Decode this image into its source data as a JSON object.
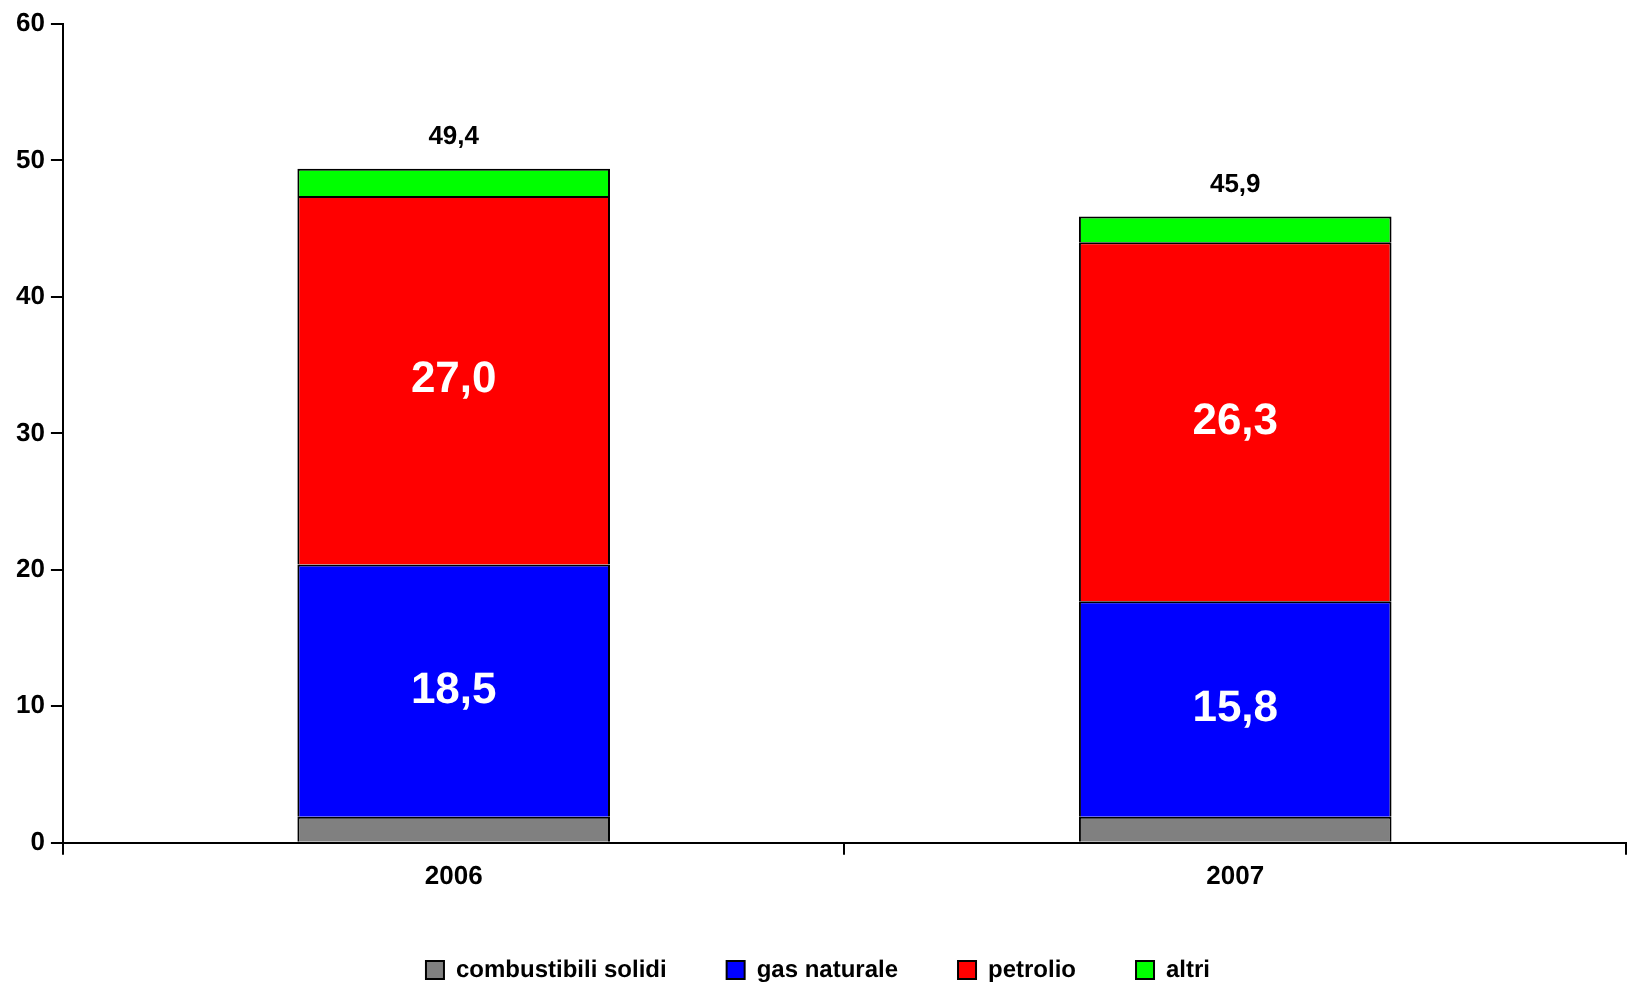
{
  "chart_data": {
    "type": "bar",
    "stacked": true,
    "categories": [
      "2006",
      "2007"
    ],
    "series": [
      {
        "name": "combustibili solidi",
        "color": "#808080",
        "values": [
          1.9,
          1.9
        ],
        "value_labels": [
          null,
          null
        ]
      },
      {
        "name": "gas naturale",
        "color": "#0000ff",
        "values": [
          18.5,
          15.8
        ],
        "value_labels": [
          "18,5",
          "15,8"
        ]
      },
      {
        "name": "petrolio",
        "color": "#ff0000",
        "values": [
          27.0,
          26.3
        ],
        "value_labels": [
          "27,0",
          "26,3"
        ]
      },
      {
        "name": "altri",
        "color": "#00ff00",
        "values": [
          2.0,
          1.9
        ],
        "value_labels": [
          null,
          null
        ]
      }
    ],
    "totals": [
      "49,4",
      "45,9"
    ],
    "ylim": [
      0,
      60
    ],
    "yticks": [
      0,
      10,
      20,
      30,
      40,
      50,
      60
    ],
    "grid": false,
    "legend": "bottom"
  }
}
